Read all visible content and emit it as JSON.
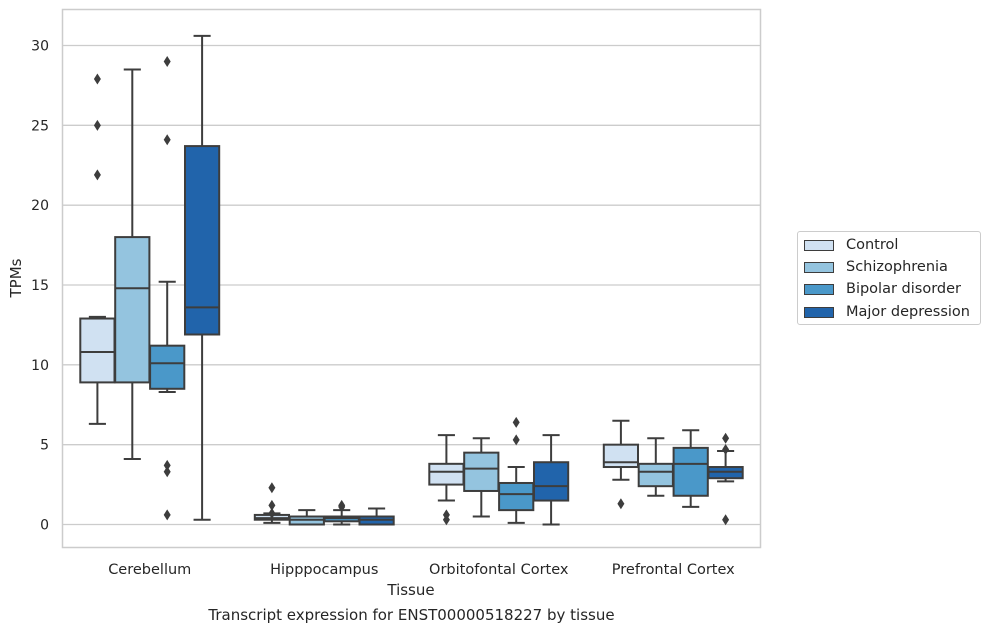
{
  "chart_data": {
    "type": "box",
    "xlabel": "Tissue",
    "ylabel": "TPMs",
    "caption": "Transcript expression for ENST00000518227 by tissue",
    "ylim": [
      -1.5,
      32.3
    ],
    "yticks": [
      0,
      5,
      10,
      15,
      20,
      25,
      30
    ],
    "grid": true,
    "legend_position": "right",
    "categories": [
      "Cerebellum",
      "Hipppocampus",
      "Orbitofontal Cortex",
      "Prefrontal Cortex"
    ],
    "series": [
      {
        "name": "Control",
        "color": "#d0e1f2",
        "boxes": [
          {
            "whislo": 6.3,
            "q1": 8.9,
            "med": 10.8,
            "q3": 12.9,
            "whishi": 13.0,
            "fliers": [
              21.9,
              25.0,
              27.9
            ]
          },
          {
            "whislo": 0.1,
            "q1": 0.3,
            "med": 0.4,
            "q3": 0.6,
            "whishi": 0.7,
            "fliers": [
              1.2,
              2.3,
              0.7
            ]
          },
          {
            "whislo": 1.5,
            "q1": 2.5,
            "med": 3.3,
            "q3": 3.8,
            "whishi": 5.6,
            "fliers": [
              0.3,
              0.6
            ]
          },
          {
            "whislo": 2.8,
            "q1": 3.6,
            "med": 3.9,
            "q3": 5.0,
            "whishi": 6.5,
            "fliers": [
              1.3
            ]
          }
        ]
      },
      {
        "name": "Schizophrenia",
        "color": "#94c4df",
        "boxes": [
          {
            "whislo": 4.1,
            "q1": 8.9,
            "med": 14.8,
            "q3": 18.0,
            "whishi": 28.5,
            "fliers": []
          },
          {
            "whislo": 0.0,
            "q1": 0.0,
            "med": 0.3,
            "q3": 0.5,
            "whishi": 0.9,
            "fliers": []
          },
          {
            "whislo": 0.5,
            "q1": 2.1,
            "med": 3.5,
            "q3": 4.5,
            "whishi": 5.4,
            "fliers": []
          },
          {
            "whislo": 1.8,
            "q1": 2.4,
            "med": 3.3,
            "q3": 3.8,
            "whishi": 5.4,
            "fliers": []
          }
        ]
      },
      {
        "name": "Bipolar disorder",
        "color": "#4a98c9",
        "boxes": [
          {
            "whislo": 8.3,
            "q1": 8.5,
            "med": 10.1,
            "q3": 11.2,
            "whishi": 15.2,
            "fliers": [
              0.6,
              3.3,
              3.7,
              24.1,
              29.0
            ]
          },
          {
            "whislo": 0.0,
            "q1": 0.2,
            "med": 0.4,
            "q3": 0.5,
            "whishi": 0.9,
            "fliers": [
              1.1,
              1.2
            ]
          },
          {
            "whislo": 0.1,
            "q1": 0.9,
            "med": 1.9,
            "q3": 2.6,
            "whishi": 3.6,
            "fliers": [
              5.3,
              6.4
            ]
          },
          {
            "whislo": 1.1,
            "q1": 1.8,
            "med": 3.8,
            "q3": 4.8,
            "whishi": 5.9,
            "fliers": []
          }
        ]
      },
      {
        "name": "Major depression",
        "color": "#2164ab",
        "boxes": [
          {
            "whislo": 0.3,
            "q1": 11.9,
            "med": 13.6,
            "q3": 23.7,
            "whishi": 30.6,
            "fliers": []
          },
          {
            "whislo": 0.0,
            "q1": 0.0,
            "med": 0.3,
            "q3": 0.5,
            "whishi": 1.0,
            "fliers": []
          },
          {
            "whislo": 0.0,
            "q1": 1.5,
            "med": 2.4,
            "q3": 3.9,
            "whishi": 5.6,
            "fliers": []
          },
          {
            "whislo": 2.7,
            "q1": 2.9,
            "med": 3.3,
            "q3": 3.6,
            "whishi": 4.6,
            "fliers": [
              0.3,
              4.7,
              5.4
            ]
          }
        ]
      }
    ]
  }
}
